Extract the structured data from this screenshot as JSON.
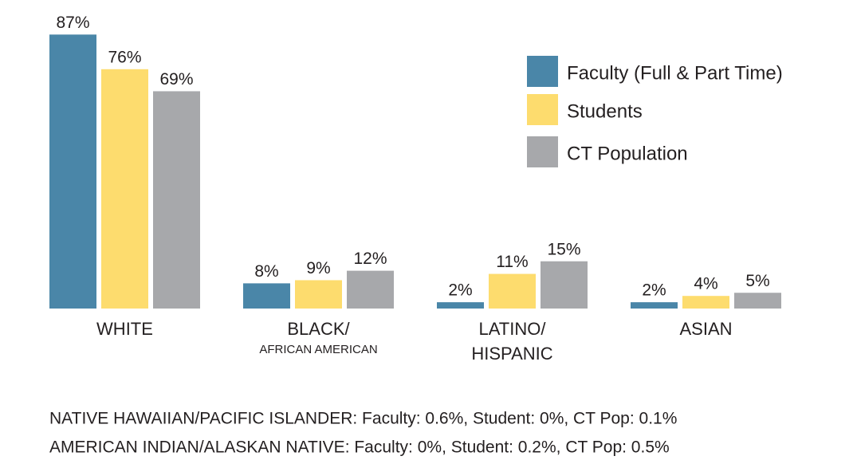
{
  "chart_data": {
    "type": "bar",
    "categories": [
      [
        "WHITE"
      ],
      [
        "BLACK/"
      ],
      [
        "LATINO/",
        "HISPANIC"
      ],
      [
        "ASIAN"
      ]
    ],
    "category_notes": {
      "1": "AFRICAN AMERICAN"
    },
    "series": [
      {
        "name": "Faculty (Full & Part Time)",
        "color": "#4a86a8",
        "values": [
          87,
          8,
          2,
          2
        ],
        "value_labels": [
          "87%",
          "8%",
          "2%",
          "2%"
        ]
      },
      {
        "name": "Students",
        "color": "#fddc6e",
        "values": [
          76,
          9,
          11,
          4
        ],
        "value_labels": [
          "76%",
          "9%",
          "11%",
          "4%"
        ]
      },
      {
        "name": "CT Population",
        "color": "#a7a8ab",
        "values": [
          69,
          12,
          15,
          5
        ],
        "value_labels": [
          "69%",
          "12%",
          "15%",
          "5%"
        ]
      }
    ],
    "ylim": [
      0,
      90
    ],
    "legend": "top-right",
    "notes": [
      "NATIVE HAWAIIAN/PACIFIC ISLANDER: Faculty: 0.6%, Student: 0%, CT Pop: 0.1%",
      "AMERICAN INDIAN/ALASKAN NATIVE: Faculty: 0%, Student: 0.2%, CT Pop: 0.5%"
    ]
  }
}
